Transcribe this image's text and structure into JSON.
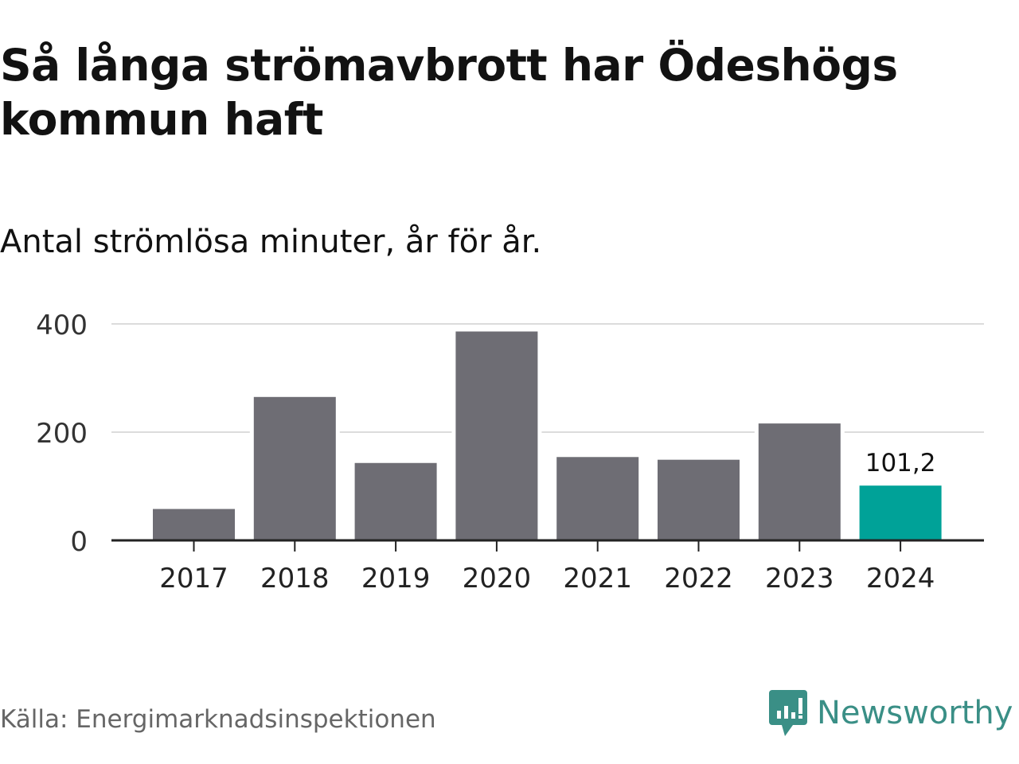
{
  "header": {
    "title": "Så långa strömavbrott har Ödeshögs kommun haft",
    "subtitle": "Antal strömlösa minuter, år för år."
  },
  "footer": {
    "source": "Källa: Energimarknadsinspektionen",
    "brand": "Newsworthy",
    "brand_color": "#3a8f86"
  },
  "chart_data": {
    "type": "bar",
    "categories": [
      "2017",
      "2018",
      "2019",
      "2020",
      "2021",
      "2022",
      "2023",
      "2024"
    ],
    "values": [
      58,
      265,
      143,
      386,
      154,
      149,
      216,
      101.2
    ],
    "highlight_index": 7,
    "data_labels": [
      {
        "index": 7,
        "text": "101,2"
      }
    ],
    "yticks": [
      0,
      200,
      400
    ],
    "ylim": [
      0,
      400
    ],
    "grid": true,
    "colors": {
      "bar": "#6e6d74",
      "highlight": "#00a298",
      "grid": "#dcdcdc",
      "axis": "#222222"
    }
  }
}
